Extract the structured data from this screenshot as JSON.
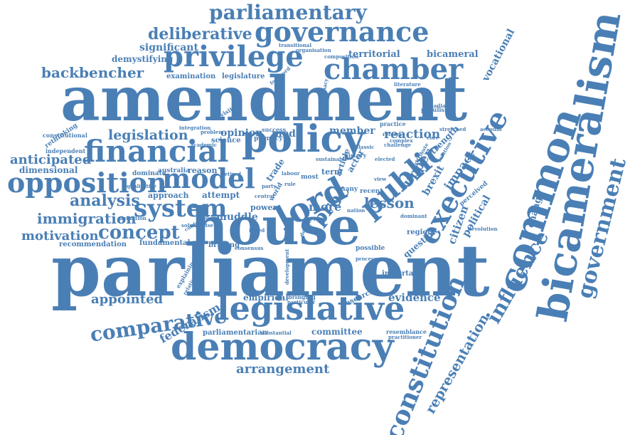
{
  "cloud": {
    "color": "#4a7fb5",
    "words": [
      "parliament",
      "amendment",
      "house",
      "democracy",
      "legislative",
      "common",
      "policy",
      "bicameralism",
      "financial",
      "governance",
      "chamber",
      "privilege",
      "opposition",
      "model",
      "lord",
      "executive",
      "constitution",
      "government",
      "system",
      "public",
      "parliamentary",
      "deliberative",
      "backbencher",
      "legislation",
      "concept",
      "immigration",
      "analysis",
      "comparative",
      "influence",
      "representation",
      "arrangement",
      "motivation",
      "anticipated",
      "dimensional",
      "appointed",
      "federalism",
      "territorial",
      "bicameral",
      "vocational",
      "significant",
      "demystifying",
      "examination",
      "legislature",
      "opinion",
      "mode",
      "member",
      "reaction",
      "lesson",
      "upper",
      "brexit",
      "impact",
      "citizen",
      "political",
      "change",
      "proc",
      "more",
      "muddle",
      "attempt",
      "approach",
      "reason",
      "power",
      "question",
      "evidence",
      "empirical",
      "research",
      "committee",
      "parliamentarian",
      "recommendation",
      "fundamental",
      "briefing",
      "important",
      "possible",
      "region",
      "strength",
      "article",
      "actor",
      "term",
      "trade",
      "world",
      "science",
      "primacy",
      "success",
      "composition",
      "organisation",
      "transitional",
      "rethinking",
      "revisited",
      "constitutional",
      "independent",
      "dominate",
      "australia",
      "explaining",
      "relationship",
      "substantial",
      "resemblance",
      "practitioner",
      "populism",
      "recent",
      "perceived",
      "devolution",
      "legitimacy",
      "practice",
      "account",
      "stretched",
      "literature",
      "classic",
      "history",
      "bringing",
      "particular",
      "solution",
      "definition",
      "qualitative",
      "problem",
      "integration",
      "foreword",
      "nation",
      "many",
      "most",
      "labour",
      "elected",
      "challenge",
      "complex",
      "canadian",
      "reform",
      "relation",
      "attribute",
      "dominant",
      "development",
      "retired",
      "party",
      "central",
      "exercise",
      "sustainable",
      "core",
      "academic",
      "confusion",
      "consensus",
      "failed",
      "debate",
      "process",
      "view",
      "rule"
    ]
  }
}
